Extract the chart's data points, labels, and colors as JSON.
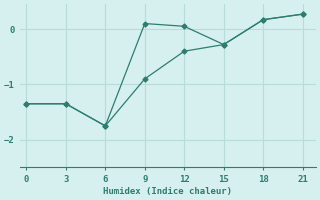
{
  "xlabel": "Humidex (Indice chaleur)",
  "background_color": "#d6f0ef",
  "grid_color": "#b8dcd8",
  "line_color": "#2e7d6e",
  "xlim": [
    -0.5,
    22
  ],
  "ylim": [
    -2.5,
    0.45
  ],
  "xticks": [
    0,
    3,
    6,
    9,
    12,
    15,
    18,
    21
  ],
  "yticks": [
    0,
    -1,
    -2
  ],
  "line1_x": [
    0,
    3,
    6,
    9,
    12,
    15,
    18,
    21
  ],
  "line1_y": [
    -1.35,
    -1.35,
    -1.75,
    0.1,
    0.05,
    -0.28,
    0.17,
    0.27
  ],
  "line2_x": [
    0,
    3,
    6,
    9,
    12,
    15,
    18,
    21
  ],
  "line2_y": [
    -1.35,
    -1.35,
    -1.75,
    -0.9,
    -0.4,
    -0.28,
    0.17,
    0.27
  ],
  "marker": "D",
  "marker_size": 2.5,
  "line_width": 0.9
}
